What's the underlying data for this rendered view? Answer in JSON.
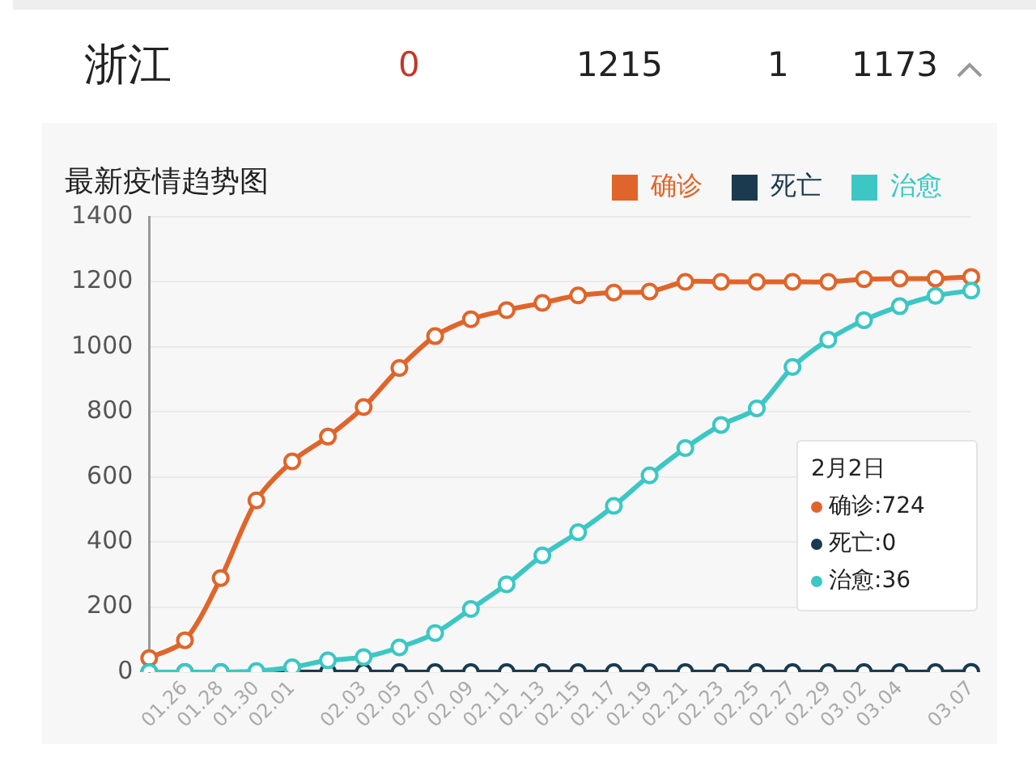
{
  "chart_data": {
    "type": "line",
    "title": "浙江",
    "subtitle": "最新疫情趋势图",
    "annotations": [
      "0",
      "1215",
      "1",
      "1173",
      "2月2日",
      "确诊:724",
      "死亡:0",
      "治愈:36"
    ],
    "categories": [
      null,
      "01.26",
      "01.28",
      "01.30",
      "02.01",
      null,
      "02.03",
      "02.05",
      "02.07",
      "02.09",
      "02.11",
      "02.13",
      "02.15",
      "02.17",
      "02.19",
      "02.21",
      "02.23",
      "02.25",
      "02.27",
      "02.29",
      "03.02",
      "03.04",
      null,
      "03.07"
    ],
    "series": [
      {
        "name": "确诊",
        "color": "#e0652a",
        "values": [
          43,
          98,
          289,
          528,
          648,
          724,
          815,
          935,
          1033,
          1085,
          1113,
          1135,
          1158,
          1167,
          1170,
          1200,
          1200,
          1200,
          1200,
          1200,
          1208,
          1210,
          1210,
          1215
        ]
      },
      {
        "name": "死亡",
        "color": "#1b3a4f",
        "values": [
          0,
          0,
          0,
          0,
          0,
          0,
          0,
          0,
          0,
          0,
          0,
          0,
          0,
          0,
          0,
          0,
          0,
          0,
          0,
          0,
          0,
          0,
          0,
          1
        ]
      },
      {
        "name": "治愈",
        "color": "#3cc7c4",
        "values": [
          0,
          0,
          0,
          3,
          15,
          36,
          46,
          76,
          120,
          194,
          270,
          359,
          430,
          511,
          605,
          689,
          760,
          811,
          938,
          1022,
          1082,
          1125,
          1157,
          1173
        ]
      }
    ],
    "ylim": [
      0,
      1400
    ],
    "yticks": [
      0,
      200,
      400,
      600,
      800,
      1000,
      1200,
      1400
    ],
    "grid": "y",
    "legend": "top right",
    "marker": "circle",
    "line_style": "solid"
  }
}
